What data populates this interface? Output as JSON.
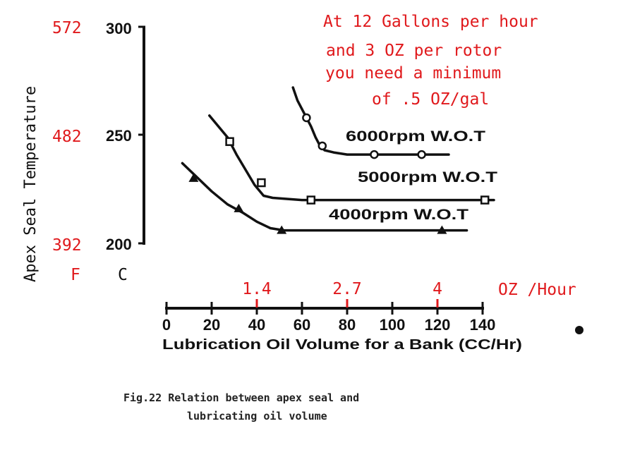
{
  "annotation": {
    "lines": [
      "At 12 Gallons per hour",
      "and 3 OZ per rotor",
      "you need a minimum",
      "of .5 OZ/gal"
    ]
  },
  "caption": {
    "line1": "Fig.22 Relation between apex seal and",
    "line2": "lubricating oil volume"
  },
  "colors": {
    "annotation": "#e0191c",
    "ink": "#111111"
  },
  "chart_data": {
    "type": "line",
    "ylabel": "Apex Seal Temperature",
    "xlabel": "Lubrication Oil Volume for a Bank (CC/Hr)",
    "xlim": [
      0,
      140
    ],
    "ylim": [
      200,
      300
    ],
    "x_ticks": [
      "0",
      "20",
      "40",
      "60",
      "80",
      "100",
      "120",
      "140"
    ],
    "y_ticks_c": [
      "200",
      "250",
      "300"
    ],
    "y_ticks_f": [
      "392",
      "482",
      "572"
    ],
    "y_unit_f": "F",
    "y_unit_c": "C",
    "oz_axis": {
      "unit_label": "OZ /Hour",
      "ticks": [
        {
          "label": "1.4",
          "x": 40
        },
        {
          "label": "2.7",
          "x": 80
        },
        {
          "label": "4",
          "x": 120
        }
      ]
    },
    "series": [
      {
        "name": "6000rpm W.O.T",
        "marker": "circle",
        "curve": [
          [
            56,
            272
          ],
          [
            58,
            266
          ],
          [
            60,
            262
          ],
          [
            62,
            258
          ],
          [
            64,
            254
          ],
          [
            66,
            249
          ],
          [
            68,
            245
          ],
          [
            70,
            243
          ],
          [
            74,
            242
          ],
          [
            80,
            241
          ],
          [
            100,
            241
          ],
          [
            125,
            241
          ]
        ],
        "points": [
          [
            62,
            258
          ],
          [
            69,
            245
          ],
          [
            92,
            241
          ],
          [
            113,
            241
          ]
        ]
      },
      {
        "name": "5000rpm W.O.T",
        "marker": "square",
        "curve": [
          [
            19,
            259
          ],
          [
            23,
            254
          ],
          [
            27,
            249
          ],
          [
            31,
            241
          ],
          [
            35,
            234
          ],
          [
            39,
            227
          ],
          [
            43,
            222
          ],
          [
            47,
            221
          ],
          [
            60,
            220
          ],
          [
            100,
            220
          ],
          [
            145,
            220
          ]
        ],
        "points": [
          [
            28,
            247
          ],
          [
            42,
            228
          ],
          [
            64,
            220
          ],
          [
            141,
            220
          ]
        ]
      },
      {
        "name": "4000rpm W.O.T",
        "marker": "triangle",
        "curve": [
          [
            7,
            237
          ],
          [
            13,
            231
          ],
          [
            20,
            224
          ],
          [
            27,
            218
          ],
          [
            34,
            214
          ],
          [
            40,
            210
          ],
          [
            46,
            207
          ],
          [
            52,
            206
          ],
          [
            70,
            206
          ],
          [
            100,
            206
          ],
          [
            133,
            206
          ]
        ],
        "points": [
          [
            12,
            230
          ],
          [
            32,
            216
          ],
          [
            51,
            206
          ],
          [
            122,
            206
          ]
        ]
      }
    ]
  }
}
